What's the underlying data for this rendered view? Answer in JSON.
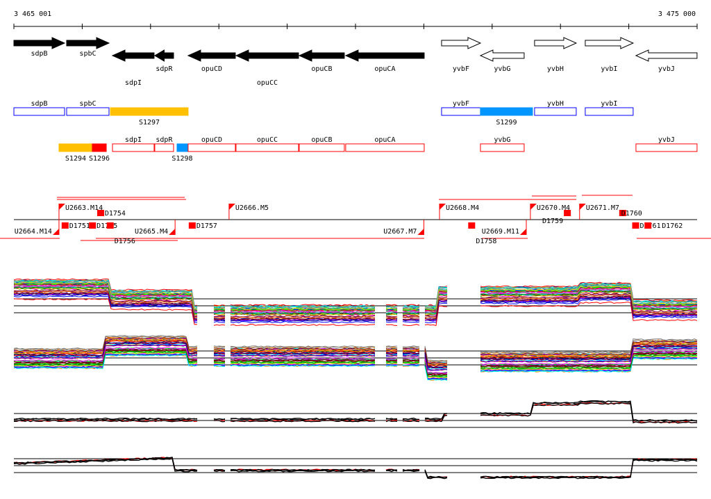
{
  "axis": {
    "start_label": "3 465 001",
    "end_label": "3 475 000",
    "start": 3465001,
    "end": 3475000
  },
  "genes": [
    {
      "name": "sdpB",
      "s": 3465001,
      "e": 3465743,
      "dir": 1,
      "fill": true,
      "row": 0
    },
    {
      "name": "spbC",
      "s": 3465773,
      "e": 3466393,
      "dir": 1,
      "fill": true,
      "row": 1
    },
    {
      "name": "sdpI",
      "s": 3466444,
      "e": 3467053,
      "dir": -1,
      "fill": true,
      "row": 2
    },
    {
      "name": "sdpR",
      "s": 3467063,
      "e": 3467338,
      "dir": -1,
      "fill": true,
      "row": 1
    },
    {
      "name": "opuCD",
      "s": 3467551,
      "e": 3468242,
      "dir": -1,
      "fill": true,
      "row": 1
    },
    {
      "name": "opuCC",
      "s": 3468252,
      "e": 3469167,
      "dir": -1,
      "fill": true,
      "row": 2
    },
    {
      "name": "opuCB",
      "s": 3469177,
      "e": 3469837,
      "dir": -1,
      "fill": true,
      "row": 1
    },
    {
      "name": "opuCA",
      "s": 3469857,
      "e": 3471006,
      "dir": -1,
      "fill": true,
      "row": 1
    },
    {
      "name": "yvbF",
      "s": 3471260,
      "e": 3471829,
      "dir": 1,
      "fill": false,
      "row": 1
    },
    {
      "name": "yvbG",
      "s": 3471829,
      "e": 3472469,
      "dir": -1,
      "fill": false,
      "row": 1
    },
    {
      "name": "yvbH",
      "s": 3472621,
      "e": 3473231,
      "dir": 1,
      "fill": false,
      "row": 1
    },
    {
      "name": "yvbI",
      "s": 3473363,
      "e": 3474064,
      "dir": 1,
      "fill": false,
      "row": 1
    },
    {
      "name": "yvbJ",
      "s": 3474105,
      "e": 3474999,
      "dir": -1,
      "fill": false,
      "row": 1
    }
  ],
  "segments_row1": [
    {
      "name": "sdpB",
      "s": 3465001,
      "e": 3465743,
      "color": "#0000ff",
      "filled": false
    },
    {
      "name": "spbC",
      "s": 3465773,
      "e": 3466393,
      "color": "#0000ff",
      "filled": false
    },
    {
      "name": "S1297",
      "s": 3466414,
      "e": 3467551,
      "color": "#ffc000",
      "filled": true
    },
    {
      "name": "yvbF",
      "s": 3471260,
      "e": 3471829,
      "color": "#0000ff",
      "filled": false
    },
    {
      "name": "S1299",
      "s": 3471829,
      "e": 3472591,
      "color": "#0095ff",
      "filled": true
    },
    {
      "name": "yvbH",
      "s": 3472621,
      "e": 3473231,
      "color": "#0000ff",
      "filled": false
    },
    {
      "name": "yvbI",
      "s": 3473363,
      "e": 3474064,
      "color": "#0000ff",
      "filled": false
    }
  ],
  "segments_row2": [
    {
      "name": "S1294",
      "s": 3465661,
      "e": 3466149,
      "color": "#ffc000",
      "filled": true
    },
    {
      "name": "S1296",
      "s": 3466149,
      "e": 3466353,
      "color": "#ff0000",
      "filled": true
    },
    {
      "name": "sdpI",
      "s": 3466444,
      "e": 3467053,
      "color": "#ff0000",
      "filled": false
    },
    {
      "name": "sdpR",
      "s": 3467063,
      "e": 3467338,
      "color": "#ff0000",
      "filled": false
    },
    {
      "name": "S1298",
      "s": 3467389,
      "e": 3467541,
      "color": "#0095ff",
      "filled": true
    },
    {
      "name": "opuCD",
      "s": 3467551,
      "e": 3468242,
      "color": "#ff0000",
      "filled": false
    },
    {
      "name": "opuCC",
      "s": 3468252,
      "e": 3469167,
      "color": "#ff0000",
      "filled": false
    },
    {
      "name": "opuCB",
      "s": 3469177,
      "e": 3469837,
      "color": "#ff0000",
      "filled": false
    },
    {
      "name": "opuCA",
      "s": 3469857,
      "e": 3471006,
      "color": "#ff0000",
      "filled": false
    },
    {
      "name": "yvbG",
      "s": 3471829,
      "e": 3472469,
      "color": "#ff0000",
      "filled": false
    },
    {
      "name": "yvbJ",
      "s": 3474105,
      "e": 3474999,
      "color": "#ff0000",
      "filled": false
    }
  ],
  "upshifts": [
    {
      "name": "U2663.M14",
      "pos": 3465661,
      "strand": 1
    },
    {
      "name": "U2666.M5",
      "pos": 3468150,
      "strand": 1
    },
    {
      "name": "U2668.M4",
      "pos": 3471230,
      "strand": 1
    },
    {
      "name": "U2670.M4",
      "pos": 3472560,
      "strand": 1
    },
    {
      "name": "U2671.M7",
      "pos": 3473280,
      "strand": 1
    },
    {
      "name": "U2664.M14",
      "pos": 3465661,
      "strand": -1
    },
    {
      "name": "U2665.M4",
      "pos": 3467360,
      "strand": -1
    },
    {
      "name": "U2667.M7",
      "pos": 3471001,
      "strand": -1
    },
    {
      "name": "U2669.M11",
      "pos": 3472500,
      "strand": -1
    }
  ],
  "downshifts": [
    {
      "name": "D1754",
      "pos": 3466220,
      "strand": 1
    },
    {
      "name": "D1759",
      "pos": 3473050,
      "strand": 1
    },
    {
      "name": "D1760",
      "pos": 3473860,
      "strand": 1
    },
    {
      "name": "D1751",
      "pos": 3465700,
      "strand": -1
    },
    {
      "name": "D1755",
      "pos": 3466100,
      "strand": -1
    },
    {
      "name": "D1756",
      "pos": 3466360,
      "strand": -1
    },
    {
      "name": "D1757",
      "pos": 3467560,
      "strand": -1
    },
    {
      "name": "D1758",
      "pos": 3471650,
      "strand": -1
    },
    {
      "name": "D1761",
      "pos": 3474050,
      "strand": -1
    },
    {
      "name": "D1762",
      "pos": 3474230,
      "strand": -1
    }
  ]
}
